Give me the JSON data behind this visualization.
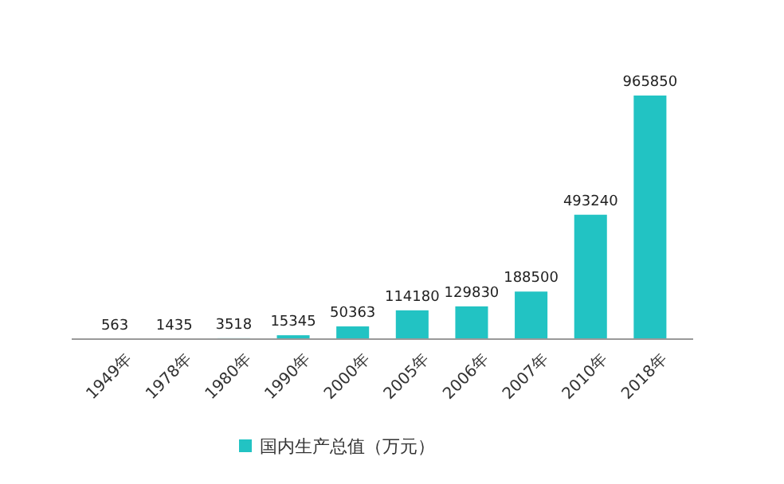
{
  "chart_data": {
    "type": "bar",
    "categories": [
      "1949年",
      "1978年",
      "1980年",
      "1990年",
      "2000年",
      "2005年",
      "2006年",
      "2007年",
      "2010年",
      "2018年"
    ],
    "series": [
      {
        "name": "国内生产总值（万元）",
        "color": "#22c3c3",
        "values": [
          563,
          1435,
          3518,
          15345,
          50363,
          114180,
          129830,
          188500,
          493240,
          965850
        ]
      }
    ],
    "data_labels": true,
    "legend": "bottom"
  }
}
